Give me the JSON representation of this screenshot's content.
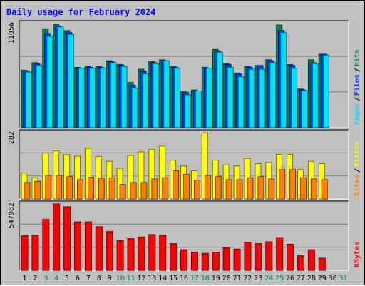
{
  "colors": {
    "background": "#c0c0c0",
    "title": "#0000ff",
    "hits": "#008040",
    "files": "#0040ff",
    "pages": "#00e0ff",
    "visits": "#ffff00",
    "sites": "#ff8000",
    "kbytes": "#ff0000",
    "weekend_label": "#008040",
    "weekday_label": "#000000"
  },
  "chart_data": {
    "type": "bar",
    "title": "Daily usage for February 2024",
    "categories": [
      "1",
      "2",
      "3",
      "4",
      "5",
      "6",
      "7",
      "8",
      "9",
      "10",
      "11",
      "12",
      "13",
      "14",
      "15",
      "16",
      "17",
      "18",
      "19",
      "20",
      "21",
      "22",
      "23",
      "24",
      "25",
      "26",
      "27",
      "28",
      "29",
      "30",
      "31"
    ],
    "weekend_days": [
      "3",
      "4",
      "10",
      "11",
      "17",
      "18",
      "24",
      "25",
      "31"
    ],
    "panels": [
      {
        "id": "top",
        "max_label": "11056",
        "ylim": [
          0,
          11056
        ],
        "legend": [
          {
            "label": "Hits",
            "color": "#008040"
          },
          {
            "label": "Files",
            "color": "#0040ff"
          },
          {
            "label": "Pages",
            "color": "#00e0ff"
          }
        ],
        "series": [
          {
            "name": "Hits",
            "values": [
              6100,
              6900,
              10500,
              11000,
              10300,
              6400,
              6500,
              6500,
              7100,
              6700,
              4800,
              6200,
              7000,
              7200,
              6500,
              3800,
              4000,
              6400,
              8300,
              6800,
              5800,
              6500,
              6600,
              7200,
              10900,
              6700,
              4100,
              7200,
              7800,
              null,
              null
            ]
          },
          {
            "name": "Files",
            "values": [
              6000,
              6800,
              10000,
              10800,
              10100,
              6300,
              6400,
              6400,
              7000,
              6600,
              4500,
              6000,
              6900,
              7100,
              6400,
              3700,
              3900,
              6300,
              8100,
              6700,
              5700,
              6400,
              6600,
              7100,
              10300,
              6600,
              4000,
              6900,
              7800,
              null,
              null
            ]
          },
          {
            "name": "Pages",
            "values": [
              5900,
              6600,
              9700,
              10700,
              9900,
              6300,
              6300,
              6300,
              6900,
              6500,
              4200,
              5700,
              6800,
              7100,
              6300,
              3500,
              3900,
              6300,
              8000,
              6400,
              5400,
              6200,
              6200,
              6900,
              10100,
              6300,
              3900,
              6800,
              7700,
              null,
              null
            ]
          }
        ]
      },
      {
        "id": "middle",
        "max_label": "282",
        "ylim": [
          0,
          282
        ],
        "legend": [
          {
            "label": "Visits",
            "color": "#ffff00"
          },
          {
            "label": "Sites",
            "color": "#ff8000"
          }
        ],
        "series": [
          {
            "name": "Visits",
            "values": [
              110,
              90,
              195,
              205,
              188,
              182,
              215,
              180,
              160,
              130,
              185,
              200,
              210,
              225,
              165,
              140,
              120,
              280,
              165,
              145,
              140,
              172,
              150,
              155,
              190,
              190,
              125,
              160,
              150,
              null,
              null
            ]
          },
          {
            "name": "Sites",
            "values": [
              70,
              75,
              100,
              100,
              95,
              82,
              92,
              88,
              90,
              62,
              70,
              70,
              85,
              90,
              120,
              105,
              80,
              100,
              95,
              82,
              82,
              90,
              95,
              85,
              125,
              125,
              90,
              85,
              82,
              null,
              null
            ]
          }
        ]
      },
      {
        "id": "bottom",
        "max_label": "547982",
        "ylim": [
          0,
          547982
        ],
        "legend": [
          {
            "label": "KBytes",
            "color": "#ff0000"
          }
        ],
        "series": [
          {
            "name": "KBytes",
            "values": [
              285000,
              290000,
              420000,
              547982,
              525000,
              400000,
              400000,
              360000,
              320000,
              245000,
              262000,
              275000,
              295000,
              290000,
              220000,
              170000,
              150000,
              140000,
              150000,
              185000,
              175000,
              230000,
              220000,
              235000,
              270000,
              215000,
              120000,
              170000,
              100000,
              null,
              null
            ]
          }
        ]
      }
    ]
  }
}
